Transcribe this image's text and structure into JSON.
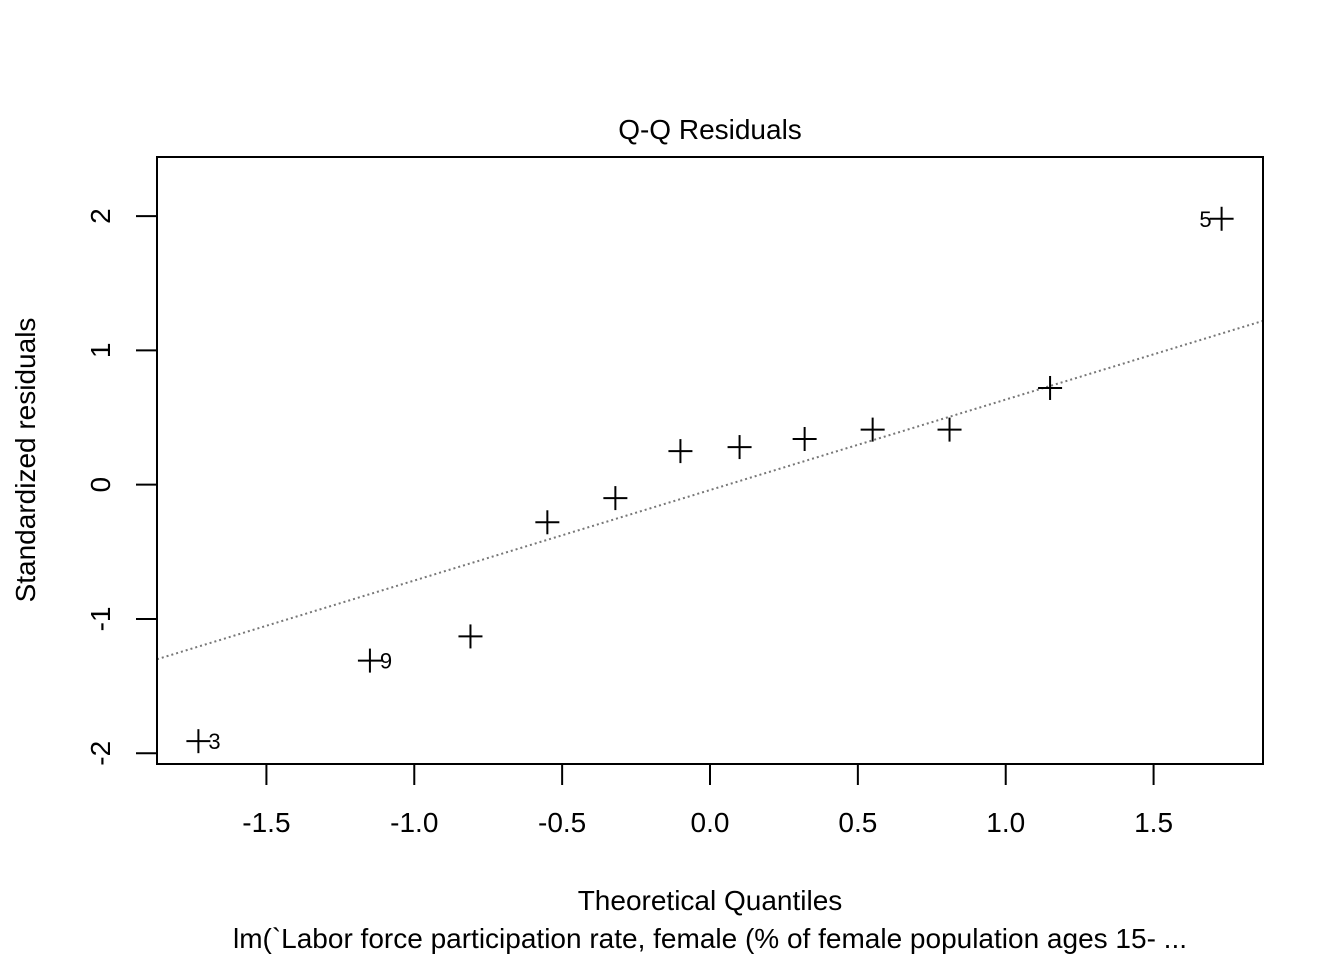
{
  "chart_data": {
    "type": "scatter",
    "title": "Q-Q Residuals",
    "xlabel": "Theoretical Quantiles",
    "ylabel": "Standardized residuals",
    "subtitle": "lm(`Labor force participation rate, female (% of female population ages 15- ...",
    "xlim": [
      -1.87,
      1.87
    ],
    "ylim": [
      -2.08,
      2.44
    ],
    "x_ticks": [
      -1.5,
      -1.0,
      -0.5,
      0.0,
      0.5,
      1.0,
      1.5
    ],
    "x_tick_labels": [
      "-1.5",
      "-1.0",
      "-0.5",
      "0.0",
      "0.5",
      "1.0",
      "1.5"
    ],
    "y_ticks": [
      -2,
      -1,
      0,
      1,
      2
    ],
    "y_tick_labels": [
      "-2",
      "-1",
      "0",
      "1",
      "2"
    ],
    "marker": "plus",
    "points": [
      {
        "x": -1.73,
        "y": -1.91,
        "label": "3"
      },
      {
        "x": -1.15,
        "y": -1.31,
        "label": "9"
      },
      {
        "x": -0.81,
        "y": -1.13,
        "label": ""
      },
      {
        "x": -0.55,
        "y": -0.28,
        "label": ""
      },
      {
        "x": -0.32,
        "y": -0.1,
        "label": ""
      },
      {
        "x": -0.1,
        "y": 0.25,
        "label": ""
      },
      {
        "x": 0.1,
        "y": 0.28,
        "label": ""
      },
      {
        "x": 0.32,
        "y": 0.34,
        "label": ""
      },
      {
        "x": 0.55,
        "y": 0.41,
        "label": ""
      },
      {
        "x": 0.81,
        "y": 0.41,
        "label": ""
      },
      {
        "x": 1.15,
        "y": 0.72,
        "label": ""
      },
      {
        "x": 1.73,
        "y": 1.98,
        "label": "5"
      }
    ],
    "reference_line": {
      "style": "dotted",
      "color": "#777777",
      "x": [
        -1.87,
        1.87
      ],
      "y": [
        -1.3,
        1.22
      ]
    },
    "grid": false,
    "legend": "none"
  }
}
